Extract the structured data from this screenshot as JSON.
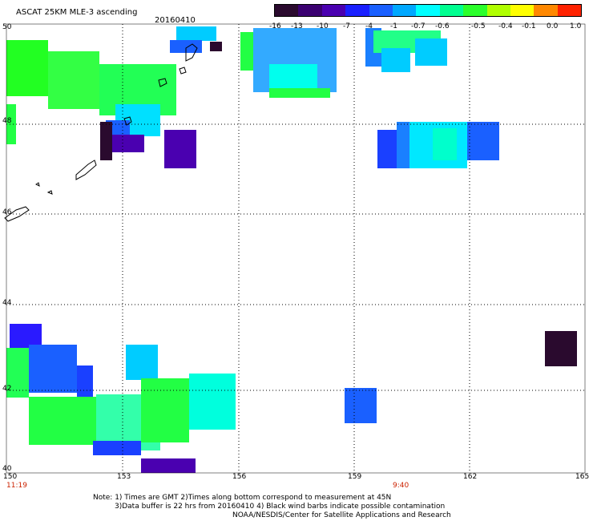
{
  "title": "ASCAT 25KM MLE-3 ascending",
  "date": "20160410",
  "colorbar": {
    "labels": [
      "-16",
      "-13",
      "-10",
      "-7",
      "-4",
      "-1",
      "-0.7",
      "-0.6",
      "-0.5",
      "-0.4",
      "-0.1",
      "0.0",
      "1.0"
    ],
    "colors": [
      "#2a0a2e",
      "#3a0070",
      "#4a00b0",
      "#1a20ff",
      "#1a60ff",
      "#00a8ff",
      "#00ffff",
      "#00ff90",
      "#2bff2b",
      "#b0ff00",
      "#ffff00",
      "#ff8800",
      "#ff2200"
    ]
  },
  "map": {
    "lat_labels": [
      "50",
      "48",
      "46",
      "44",
      "42",
      "40"
    ],
    "lon_labels": [
      "150",
      "153",
      "156",
      "159",
      "162",
      "165"
    ],
    "time_labels": [
      "11:19",
      "9:40"
    ]
  },
  "notes": {
    "line1": "Note: 1) Times are GMT 2)Times along bottom correspond to measurement at 45N",
    "line2": "3)Data buffer is 22 hrs from 20160410 4) Black wind barbs indicate possible contamination",
    "line3": "NOAA/NESDIS/Center for Satellite Applications and Research"
  },
  "colors": {
    "grid": "#000000",
    "frame": "#000000"
  }
}
